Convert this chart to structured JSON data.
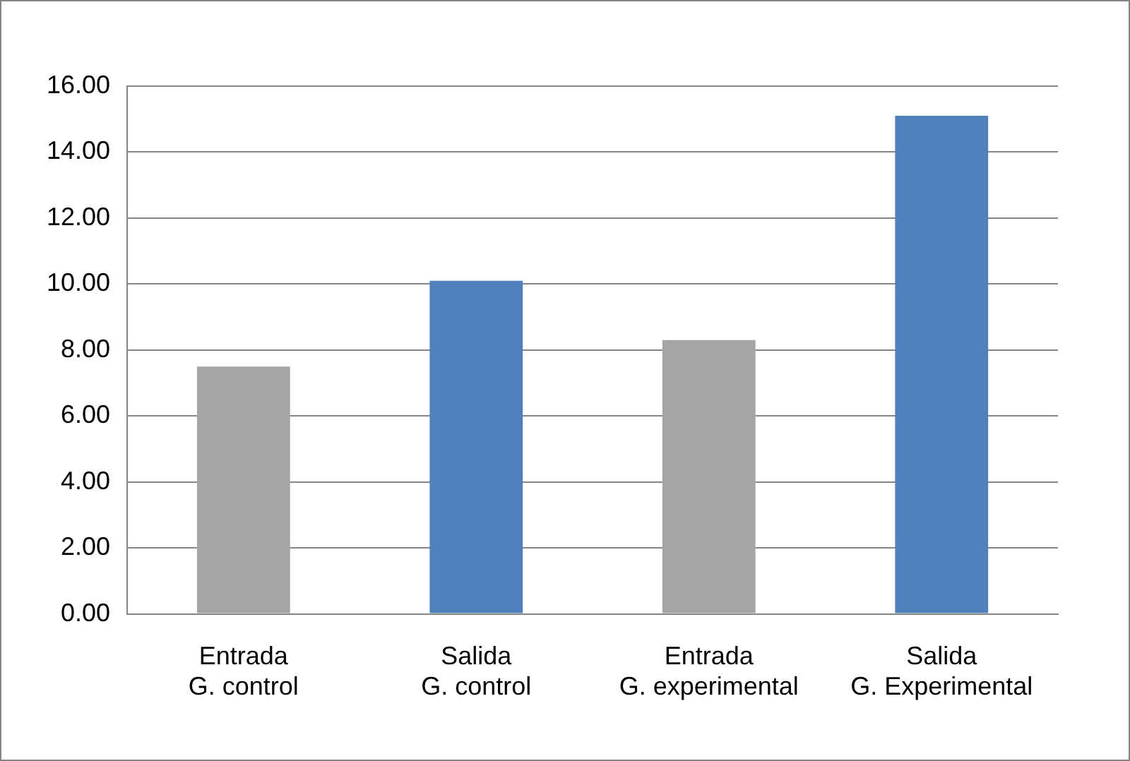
{
  "chart_data": {
    "type": "bar",
    "categories": [
      "Entrada\nG. control",
      "Salida\nG. control",
      "Entrada\nG. experimental",
      "Salida\nG. Experimental"
    ],
    "values": [
      7.5,
      10.1,
      8.3,
      15.1
    ],
    "colors": [
      "#a5a5a5",
      "#4f81bd",
      "#a5a5a5",
      "#4f81bd"
    ],
    "ylim": [
      0,
      16
    ],
    "yticks": [
      {
        "value": 0,
        "label": "0.00"
      },
      {
        "value": 2,
        "label": "2.00"
      },
      {
        "value": 4,
        "label": "4.00"
      },
      {
        "value": 6,
        "label": "6.00"
      },
      {
        "value": 8,
        "label": "8.00"
      },
      {
        "value": 10,
        "label": "10.00"
      },
      {
        "value": 12,
        "label": "12.00"
      },
      {
        "value": 14,
        "label": "14.00"
      },
      {
        "value": 16,
        "label": "16.00"
      }
    ],
    "grid": "y",
    "legend": false
  }
}
